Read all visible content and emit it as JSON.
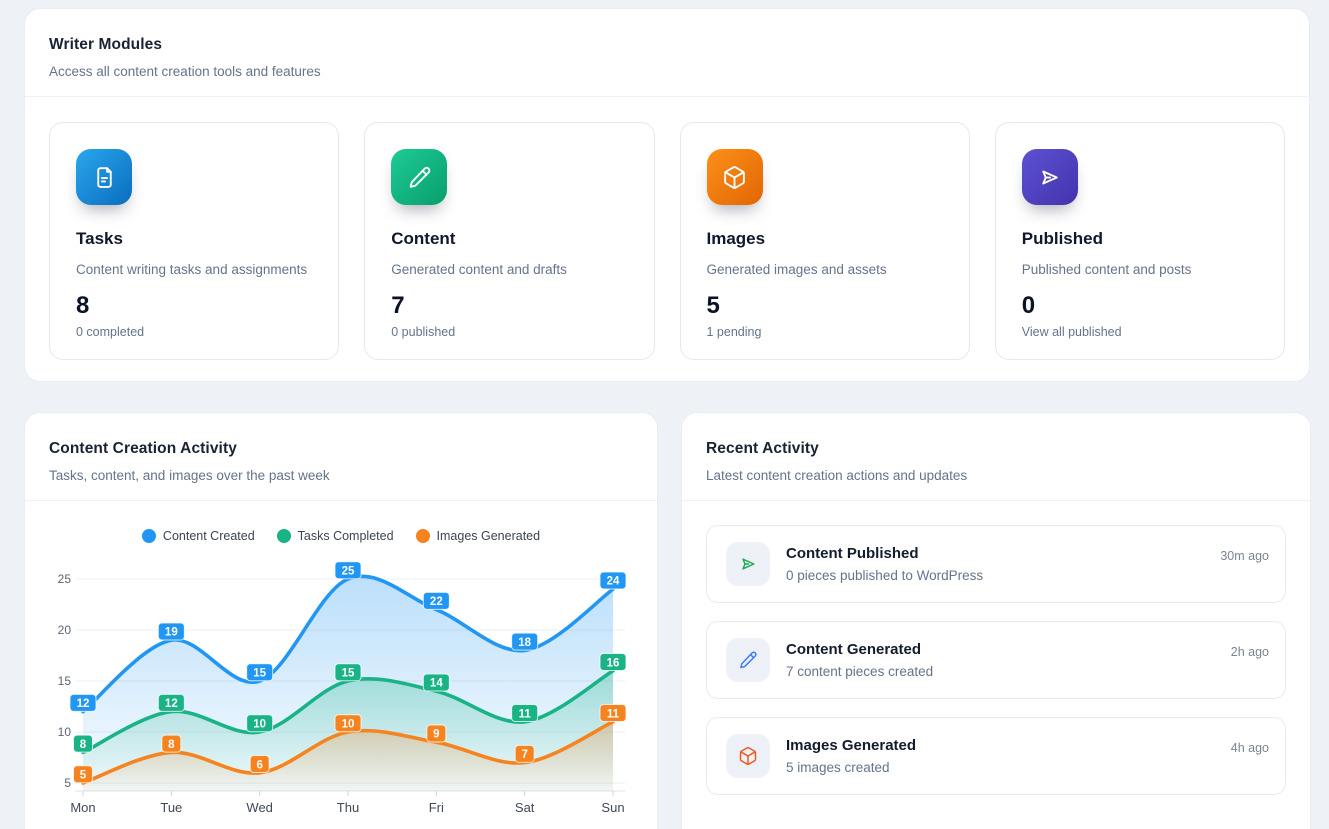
{
  "modules_panel": {
    "title": "Writer Modules",
    "subtitle": "Access all content creation tools and features",
    "cards": [
      {
        "icon": "document-icon",
        "title": "Tasks",
        "description": "Content writing tasks and assignments",
        "count": "8",
        "sub_label": "0 completed",
        "gradient_from": "#2aa7ee",
        "gradient_to": "#0a6dbd"
      },
      {
        "icon": "pencil-icon",
        "title": "Content",
        "description": "Generated content and drafts",
        "count": "7",
        "sub_label": "0 published",
        "gradient_from": "#1ecb96",
        "gradient_to": "#089e6b"
      },
      {
        "icon": "cube-icon",
        "title": "Images",
        "description": "Generated images and assets",
        "count": "5",
        "sub_label": "1 pending",
        "gradient_from": "#fb9018",
        "gradient_to": "#e36604"
      },
      {
        "icon": "send-icon",
        "title": "Published",
        "description": "Published content and posts",
        "count": "0",
        "sub_label": "View all published",
        "gradient_from": "#5d51d2",
        "gradient_to": "#4334ad"
      }
    ]
  },
  "activity_chart_panel": {
    "title": "Content Creation Activity",
    "subtitle": "Tasks, content, and images over the past week"
  },
  "chart_data": {
    "type": "line",
    "x": [
      "Mon",
      "Tue",
      "Wed",
      "Thu",
      "Fri",
      "Sat",
      "Sun"
    ],
    "series": [
      {
        "name": "Content Created",
        "color": "#2196f3",
        "values": [
          12,
          19,
          15,
          25,
          22,
          18,
          24
        ]
      },
      {
        "name": "Tasks Completed",
        "color": "#1ab386",
        "values": [
          8,
          12,
          10,
          15,
          14,
          11,
          16
        ]
      },
      {
        "name": "Images Generated",
        "color": "#f5831f",
        "values": [
          5,
          8,
          6,
          10,
          9,
          7,
          11
        ]
      }
    ],
    "y_ticks": [
      5,
      10,
      15,
      20,
      25
    ],
    "ylim": [
      5,
      25
    ],
    "smooth": true,
    "area": true,
    "grid": true,
    "data_labels": true,
    "legend_position": "top",
    "title": "Content Creation Activity",
    "xlabel": "",
    "ylabel": ""
  },
  "recent_activity_panel": {
    "title": "Recent Activity",
    "subtitle": "Latest content creation actions and updates",
    "items": [
      {
        "icon": "send-icon",
        "icon_color": "#1cab4f",
        "title": "Content Published",
        "description": "0 pieces published to WordPress",
        "time": "30m ago"
      },
      {
        "icon": "pencil-icon",
        "icon_color": "#3e7bfa",
        "title": "Content Generated",
        "description": "7 content pieces created",
        "time": "2h ago"
      },
      {
        "icon": "cube-icon",
        "icon_color": "#ea5a1f",
        "title": "Images Generated",
        "description": "5 images created",
        "time": "4h ago"
      }
    ]
  }
}
